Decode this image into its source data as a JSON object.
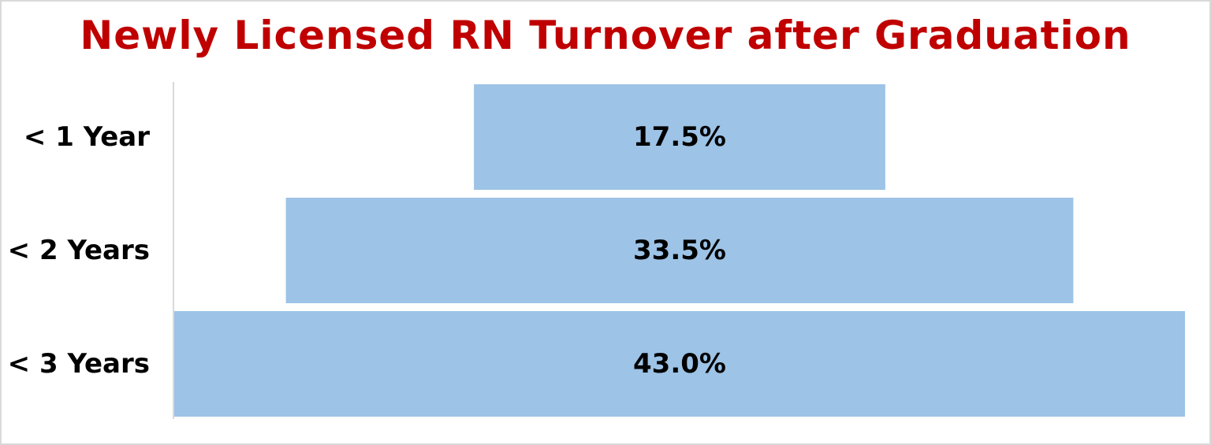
{
  "chart_data": {
    "type": "bar",
    "orientation": "horizontal",
    "style": "funnel",
    "title": "Newly Licensed RN Turnover after Graduation",
    "categories": [
      "< 1 Year",
      "< 2 Years",
      "< 3 Years"
    ],
    "values": [
      17.5,
      33.5,
      43.0
    ],
    "data_labels": [
      "17.5%",
      "33.5%",
      "43.0%"
    ],
    "unit": "%",
    "xlim": [
      0,
      43.0
    ],
    "grid": false,
    "legend": "none",
    "bar_color": "#9dc3e6",
    "title_color": "#c00000"
  }
}
